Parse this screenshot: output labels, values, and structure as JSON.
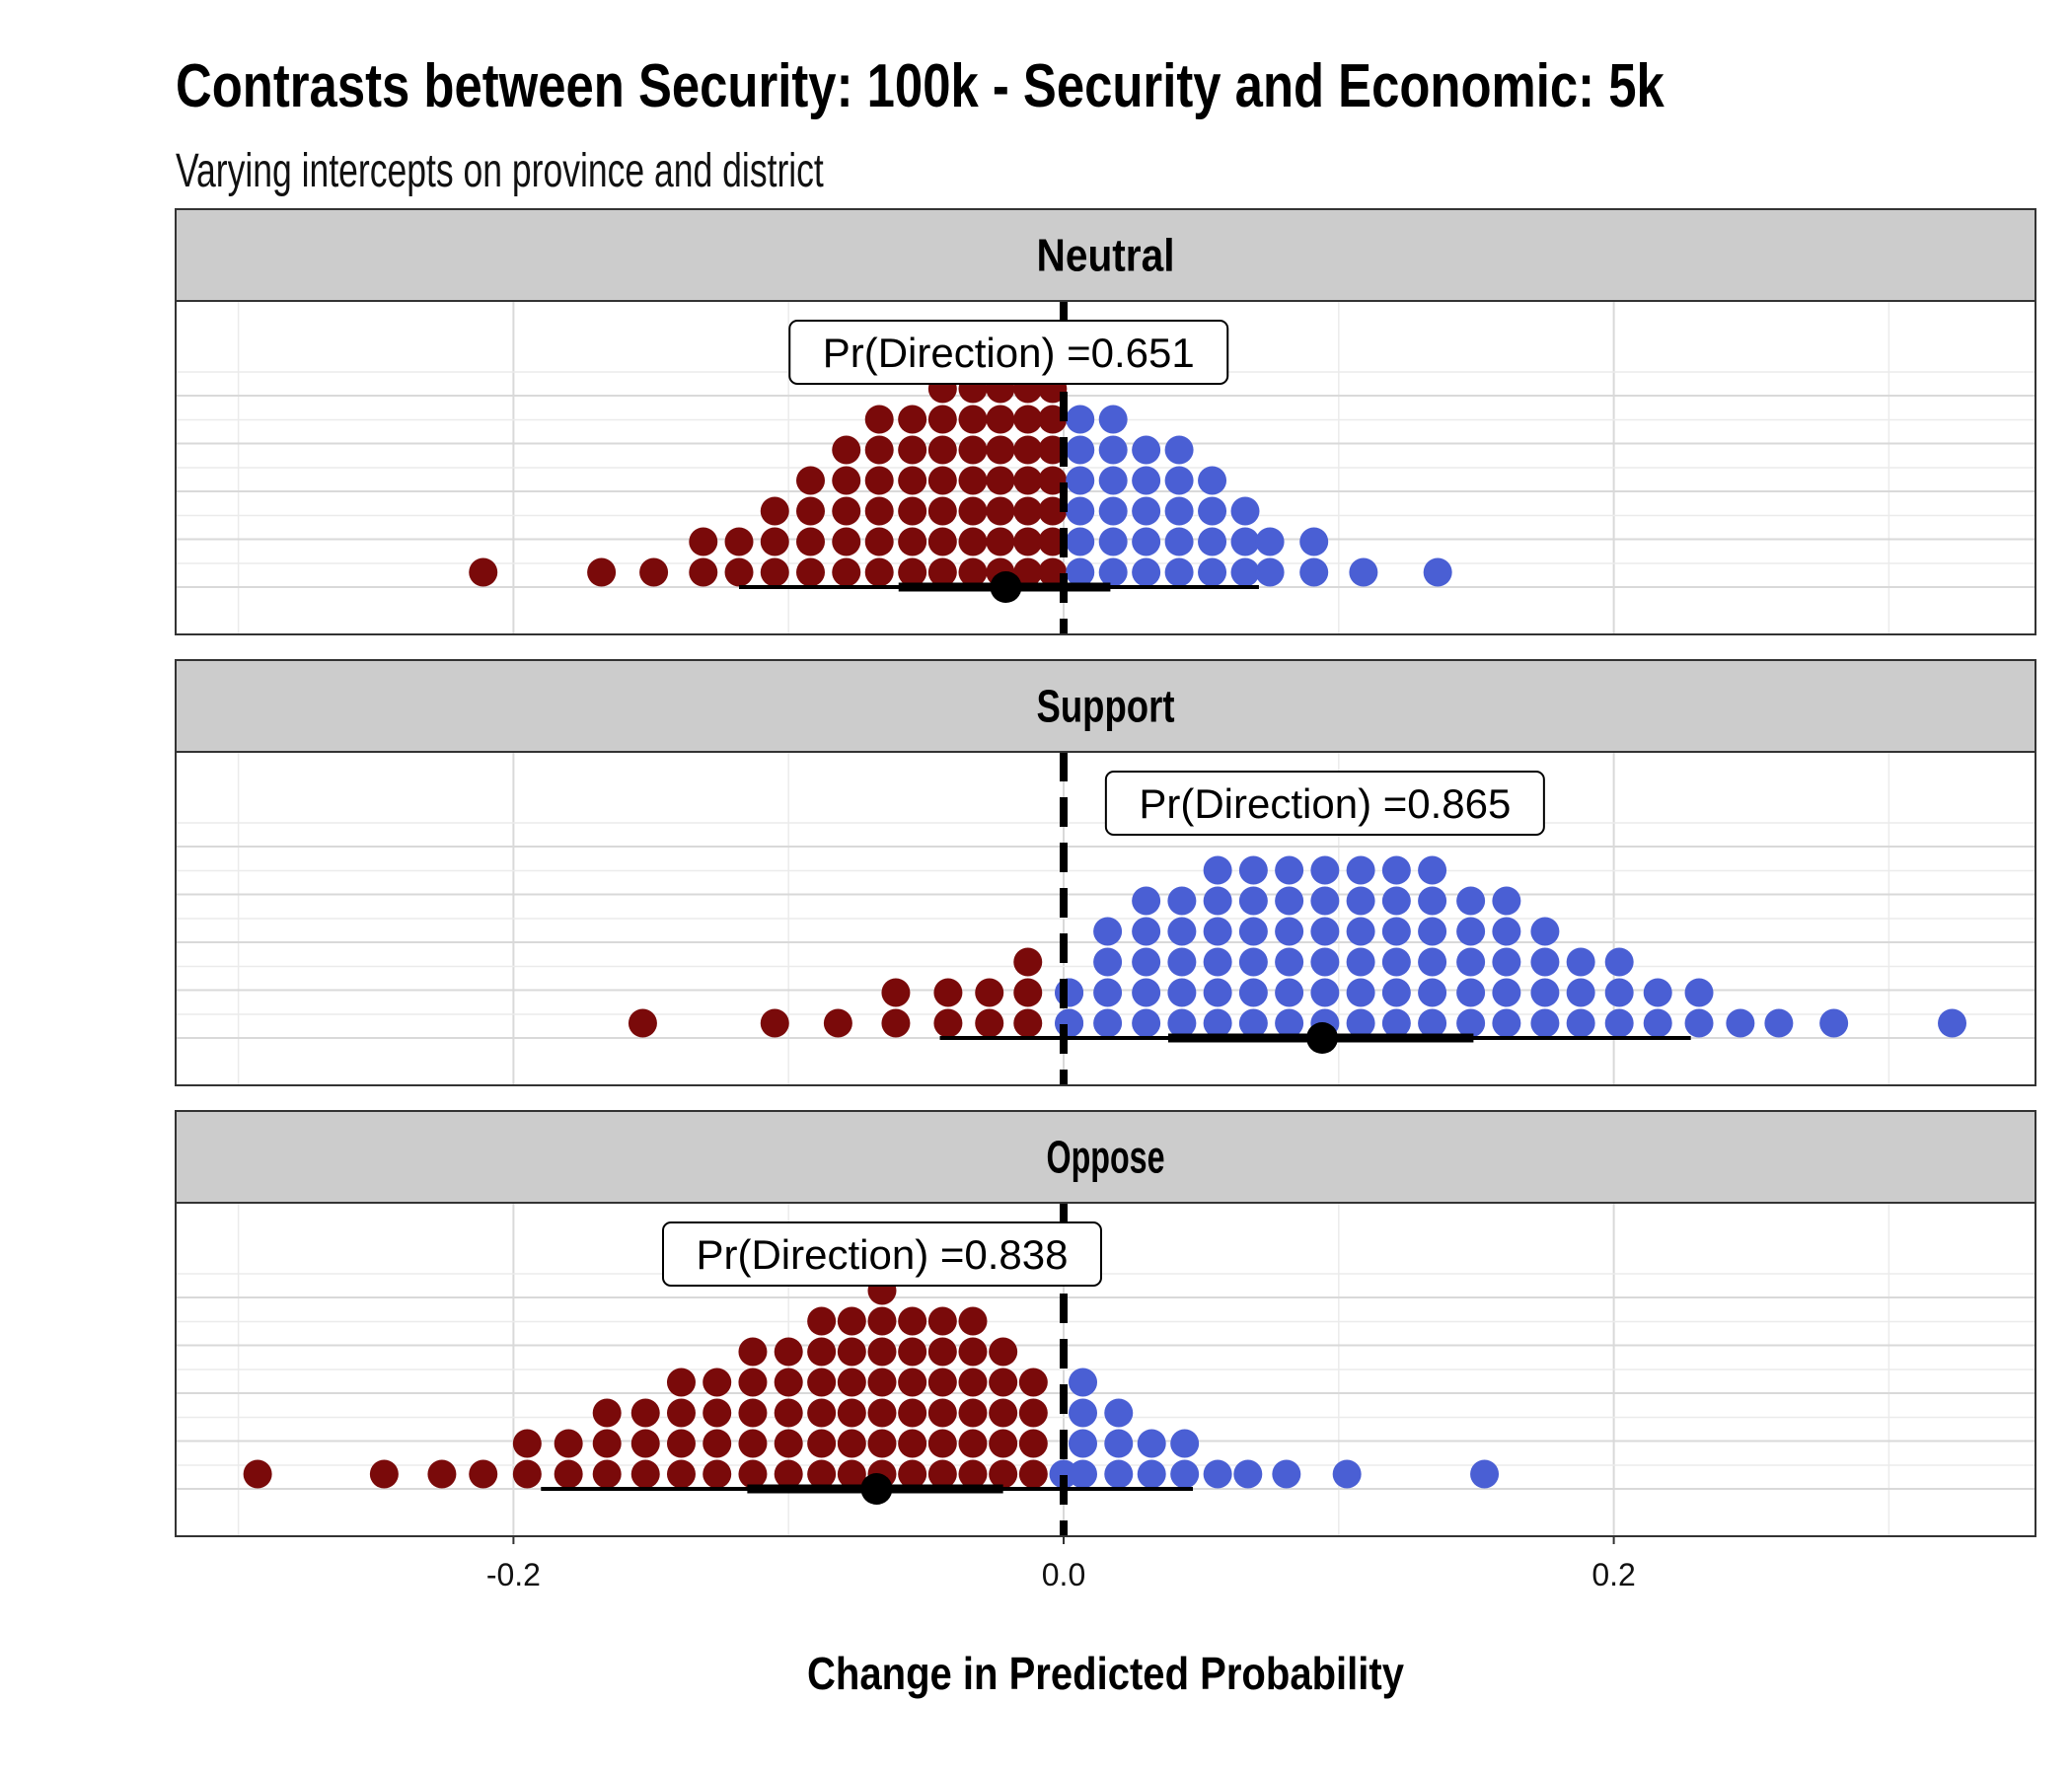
{
  "title": "Contrasts between Security: 100k - Security and Economic: 5k",
  "subtitle": "Varying intercepts on province and district",
  "colors": {
    "negative": "#7a0a0a",
    "positive": "#4a5fd4",
    "strip_bg": "#cccccc",
    "grid": "#d9d9d9"
  },
  "chart_data": {
    "type": "dotplot",
    "xlabel": "Change in Predicted Probability",
    "xlim": [
      -0.3,
      0.35
    ],
    "xticks": [
      -0.2,
      0.0,
      0.2
    ],
    "xtick_labels": [
      "-0.2",
      "0.0",
      "0.2"
    ],
    "reference_line": 0.0,
    "grid": true,
    "panels": [
      {
        "label": "Neutral",
        "annotation": "Pr(Direction) =0.651",
        "annotation_x": -0.02,
        "point_estimate": -0.021,
        "interval_inner": [
          -0.06,
          0.017
        ],
        "interval_outer": [
          -0.118,
          0.071
        ],
        "dot_bins": [
          {
            "x": -0.211,
            "count": 1
          },
          {
            "x": -0.168,
            "count": 1
          },
          {
            "x": -0.149,
            "count": 1
          },
          {
            "x": -0.131,
            "count": 2
          },
          {
            "x": -0.118,
            "count": 2
          },
          {
            "x": -0.105,
            "count": 3
          },
          {
            "x": -0.092,
            "count": 4
          },
          {
            "x": -0.079,
            "count": 5
          },
          {
            "x": -0.067,
            "count": 6
          },
          {
            "x": -0.055,
            "count": 6
          },
          {
            "x": -0.044,
            "count": 7
          },
          {
            "x": -0.033,
            "count": 7
          },
          {
            "x": -0.023,
            "count": 7
          },
          {
            "x": -0.013,
            "count": 7
          },
          {
            "x": -0.004,
            "count": 7
          },
          {
            "x": 0.006,
            "count": 6
          },
          {
            "x": 0.018,
            "count": 6
          },
          {
            "x": 0.03,
            "count": 5
          },
          {
            "x": 0.042,
            "count": 5
          },
          {
            "x": 0.054,
            "count": 4
          },
          {
            "x": 0.066,
            "count": 3
          },
          {
            "x": 0.075,
            "count": 2
          },
          {
            "x": 0.091,
            "count": 2
          },
          {
            "x": 0.109,
            "count": 1
          },
          {
            "x": 0.136,
            "count": 1
          }
        ]
      },
      {
        "label": "Support",
        "annotation": "Pr(Direction) =0.865",
        "annotation_x": 0.095,
        "point_estimate": 0.094,
        "interval_inner": [
          0.038,
          0.149
        ],
        "interval_outer": [
          -0.045,
          0.228
        ],
        "dot_bins": [
          {
            "x": -0.153,
            "count": 1
          },
          {
            "x": -0.105,
            "count": 1
          },
          {
            "x": -0.082,
            "count": 1
          },
          {
            "x": -0.061,
            "count": 2
          },
          {
            "x": -0.042,
            "count": 2
          },
          {
            "x": -0.027,
            "count": 2
          },
          {
            "x": -0.013,
            "count": 3
          },
          {
            "x": 0.002,
            "count": 2
          },
          {
            "x": 0.002,
            "count": 2
          },
          {
            "x": 0.016,
            "count": 4
          },
          {
            "x": 0.03,
            "count": 5
          },
          {
            "x": 0.043,
            "count": 5
          },
          {
            "x": 0.056,
            "count": 6
          },
          {
            "x": 0.069,
            "count": 6
          },
          {
            "x": 0.082,
            "count": 6
          },
          {
            "x": 0.095,
            "count": 6
          },
          {
            "x": 0.108,
            "count": 6
          },
          {
            "x": 0.121,
            "count": 6
          },
          {
            "x": 0.134,
            "count": 6
          },
          {
            "x": 0.148,
            "count": 5
          },
          {
            "x": 0.161,
            "count": 5
          },
          {
            "x": 0.175,
            "count": 4
          },
          {
            "x": 0.188,
            "count": 3
          },
          {
            "x": 0.202,
            "count": 3
          },
          {
            "x": 0.216,
            "count": 2
          },
          {
            "x": 0.231,
            "count": 2
          },
          {
            "x": 0.246,
            "count": 1
          },
          {
            "x": 0.26,
            "count": 1
          },
          {
            "x": 0.28,
            "count": 1
          },
          {
            "x": 0.323,
            "count": 1
          }
        ]
      },
      {
        "label": "Oppose",
        "annotation": "Pr(Direction) =0.838",
        "annotation_x": -0.066,
        "point_estimate": -0.068,
        "interval_inner": [
          -0.115,
          -0.022
        ],
        "interval_outer": [
          -0.19,
          0.047
        ],
        "dot_bins": [
          {
            "x": -0.293,
            "count": 1
          },
          {
            "x": -0.247,
            "count": 1
          },
          {
            "x": -0.226,
            "count": 1
          },
          {
            "x": -0.211,
            "count": 1
          },
          {
            "x": -0.195,
            "count": 2
          },
          {
            "x": -0.18,
            "count": 2
          },
          {
            "x": -0.166,
            "count": 3
          },
          {
            "x": -0.152,
            "count": 3
          },
          {
            "x": -0.139,
            "count": 4
          },
          {
            "x": -0.126,
            "count": 4
          },
          {
            "x": -0.113,
            "count": 5
          },
          {
            "x": -0.1,
            "count": 5
          },
          {
            "x": -0.088,
            "count": 6
          },
          {
            "x": -0.077,
            "count": 6
          },
          {
            "x": -0.066,
            "count": 7
          },
          {
            "x": -0.055,
            "count": 6
          },
          {
            "x": -0.044,
            "count": 6
          },
          {
            "x": -0.033,
            "count": 6
          },
          {
            "x": -0.022,
            "count": 5
          },
          {
            "x": -0.011,
            "count": 4
          },
          {
            "x": 0.0,
            "count": 1
          },
          {
            "x": 0.007,
            "count": 4
          },
          {
            "x": 0.02,
            "count": 3
          },
          {
            "x": 0.032,
            "count": 2
          },
          {
            "x": 0.044,
            "count": 2
          },
          {
            "x": 0.056,
            "count": 1
          },
          {
            "x": 0.067,
            "count": 1
          },
          {
            "x": 0.081,
            "count": 1
          },
          {
            "x": 0.103,
            "count": 1
          },
          {
            "x": 0.153,
            "count": 1
          }
        ]
      }
    ]
  }
}
